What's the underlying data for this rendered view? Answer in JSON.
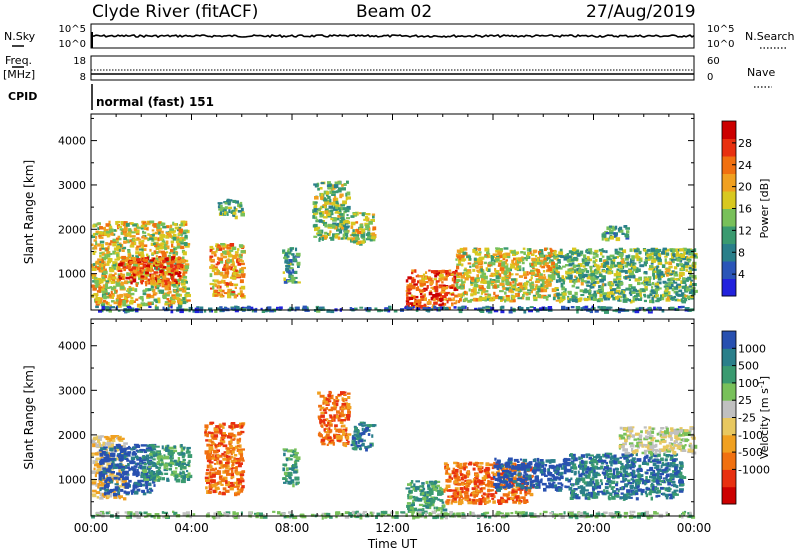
{
  "header": {
    "station": "Clyde River (fitACF)",
    "beam": "Beam 02",
    "date": "27/Aug/2019"
  },
  "strip": {
    "nsky_label": "N.Sky",
    "nsky_ticks": [
      "10^5",
      "10^0"
    ],
    "nsearch_label": "N.Search",
    "nsearch_ticks": [
      "10^5",
      "10^0"
    ],
    "freq_label": "Freq.",
    "freq_unit": "[MHz]",
    "freq_ticks": [
      "18",
      "8"
    ],
    "nave_label": "Nave",
    "nave_ticks": [
      "60",
      "0"
    ],
    "cpid_label": "CPID",
    "cpid_value": "normal (fast) 151"
  },
  "colors": {
    "power": [
      "#2222dd",
      "#2a55b8",
      "#2a7f8a",
      "#3a9a70",
      "#78c05a",
      "#d8c820",
      "#f0a020",
      "#f07010",
      "#e83010",
      "#cc0000"
    ],
    "velocity": [
      "#cc0000",
      "#e83010",
      "#f07010",
      "#f0a020",
      "#e8c860",
      "#c0c0c0",
      "#78c05a",
      "#3a9a70",
      "#2a7f8a",
      "#2850b0"
    ]
  },
  "chart_data": [
    {
      "type": "heatmap",
      "quantity": "Power",
      "ylabel": "Slant Range [km]",
      "yticks": [
        1000,
        2000,
        3000,
        4000
      ],
      "ylim": [
        180,
        4600
      ],
      "xlim": [
        0,
        24
      ],
      "colorbar": {
        "label": "Power [dB]",
        "ticks": [
          4,
          8,
          12,
          16,
          20,
          24,
          28
        ],
        "range": [
          0,
          32
        ]
      },
      "regions": [
        {
          "t0": 0.0,
          "t1": 3.8,
          "r0": 300,
          "r1": 2200,
          "v": 18
        },
        {
          "t0": 1.0,
          "t1": 3.6,
          "r0": 800,
          "r1": 1400,
          "v": 26
        },
        {
          "t0": 4.7,
          "t1": 6.0,
          "r0": 500,
          "r1": 1700,
          "v": 22
        },
        {
          "t0": 5.0,
          "t1": 6.0,
          "r0": 2300,
          "r1": 2700,
          "v": 12
        },
        {
          "t0": 7.6,
          "t1": 8.2,
          "r0": 800,
          "r1": 1600,
          "v": 10
        },
        {
          "t0": 8.8,
          "t1": 10.2,
          "r0": 1800,
          "r1": 3100,
          "v": 14
        },
        {
          "t0": 10.3,
          "t1": 11.2,
          "r0": 1700,
          "r1": 2400,
          "v": 17
        },
        {
          "t0": 12.5,
          "t1": 14.5,
          "r0": 250,
          "r1": 1100,
          "v": 26
        },
        {
          "t0": 14.5,
          "t1": 18.5,
          "r0": 400,
          "r1": 1600,
          "v": 18
        },
        {
          "t0": 18.5,
          "t1": 24.0,
          "r0": 400,
          "r1": 1600,
          "v": 13
        },
        {
          "t0": 20.3,
          "t1": 21.3,
          "r0": 1800,
          "r1": 2100,
          "v": 10
        },
        {
          "t0": 0.0,
          "t1": 24.0,
          "r0": 180,
          "r1": 280,
          "v": 6
        }
      ]
    },
    {
      "type": "heatmap",
      "quantity": "Velocity",
      "ylabel": "Slant Range [km]",
      "yticks": [
        1000,
        2000,
        3000,
        4000
      ],
      "ylim": [
        180,
        4600
      ],
      "xlim": [
        0,
        24
      ],
      "xlabel": "Time UT",
      "xticks": [
        "00:00",
        "04:00",
        "08:00",
        "12:00",
        "16:00",
        "20:00",
        "00:00"
      ],
      "colorbar": {
        "label": "Velocity [m s^-1]",
        "ticks": [
          1000,
          500,
          100,
          25,
          -25,
          -100,
          -500,
          -1000
        ]
      },
      "regions": [
        {
          "t0": 0.0,
          "t1": 1.3,
          "r0": 600,
          "r1": 2000,
          "v": 4
        },
        {
          "t0": 0.3,
          "t1": 2.5,
          "r0": 700,
          "r1": 1800,
          "v": 9
        },
        {
          "t0": 2.0,
          "t1": 3.9,
          "r0": 1000,
          "r1": 1800,
          "v": 7
        },
        {
          "t0": 4.5,
          "t1": 6.0,
          "r0": 700,
          "r1": 2300,
          "v": 2
        },
        {
          "t0": 7.6,
          "t1": 8.2,
          "r0": 900,
          "r1": 1700,
          "v": 7
        },
        {
          "t0": 9.0,
          "t1": 10.2,
          "r0": 1800,
          "r1": 3000,
          "v": 2
        },
        {
          "t0": 10.3,
          "t1": 11.2,
          "r0": 1700,
          "r1": 2300,
          "v": 8
        },
        {
          "t0": 12.5,
          "t1": 14.0,
          "r0": 300,
          "r1": 1000,
          "v": 7
        },
        {
          "t0": 14.0,
          "t1": 17.5,
          "r0": 500,
          "r1": 1400,
          "v": 2
        },
        {
          "t0": 16.0,
          "t1": 19.0,
          "r0": 800,
          "r1": 1500,
          "v": 9
        },
        {
          "t0": 19.0,
          "t1": 23.5,
          "r0": 600,
          "r1": 1600,
          "v": 8
        },
        {
          "t0": 21.0,
          "t1": 24.0,
          "r0": 1600,
          "r1": 2200,
          "v": 5
        },
        {
          "t0": 0.0,
          "t1": 24.0,
          "r0": 180,
          "r1": 300,
          "v": 6
        }
      ]
    }
  ]
}
